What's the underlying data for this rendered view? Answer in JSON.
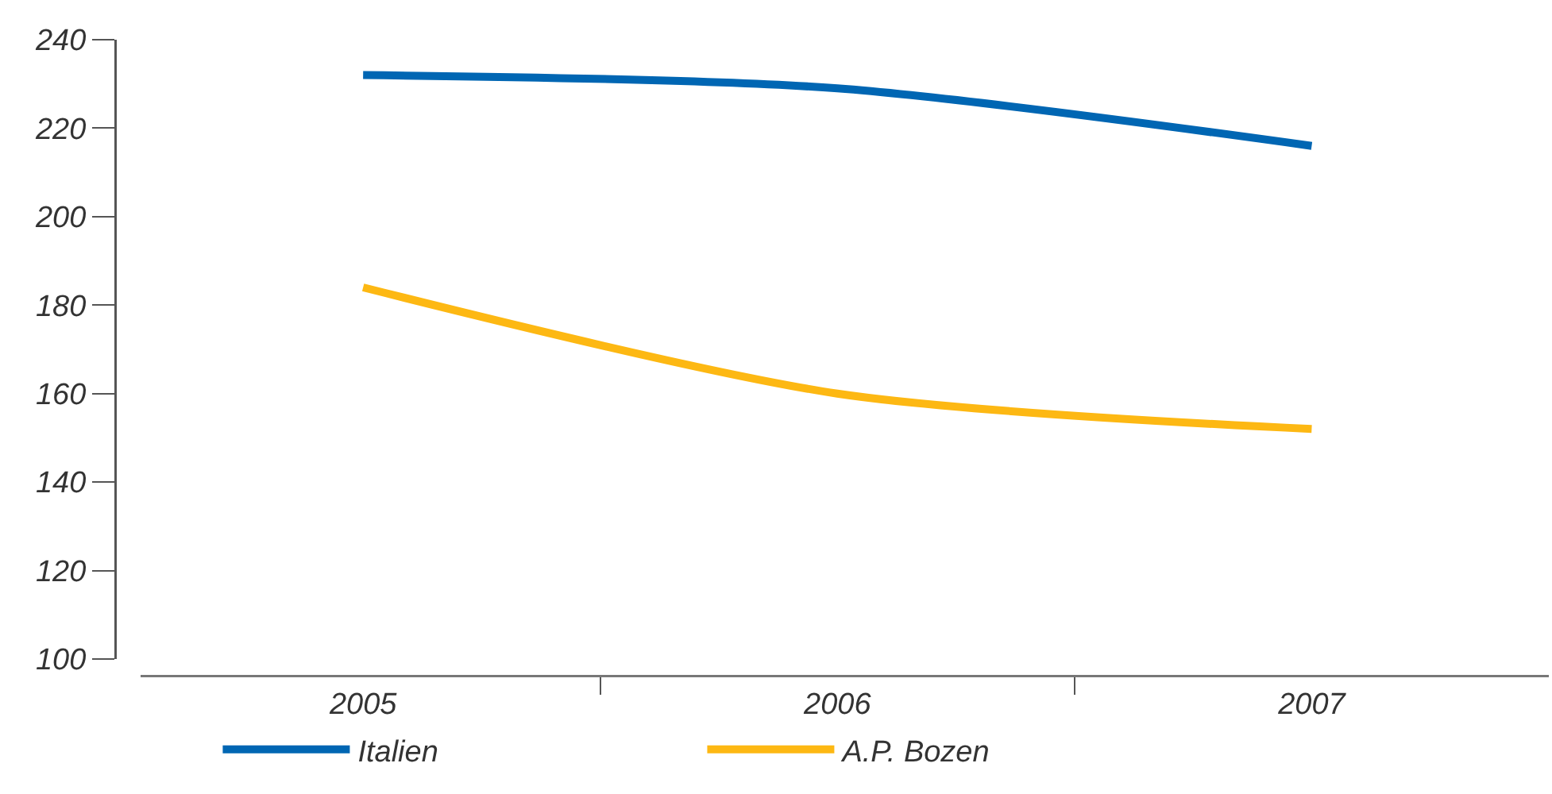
{
  "chart_data": {
    "type": "line",
    "categories": [
      "2005",
      "2006",
      "2007"
    ],
    "series": [
      {
        "name": "Italien",
        "color": "#0066b3",
        "values": [
          232,
          229,
          216
        ]
      },
      {
        "name": "A.P. Bozen",
        "color": "#fdb813",
        "values": [
          184,
          160,
          152
        ]
      }
    ],
    "ylim": [
      100,
      240
    ],
    "yticks": [
      100,
      120,
      140,
      160,
      180,
      200,
      220,
      240
    ],
    "grid": false,
    "legend": "bottom left",
    "marker": "none",
    "line_style": "solid"
  }
}
